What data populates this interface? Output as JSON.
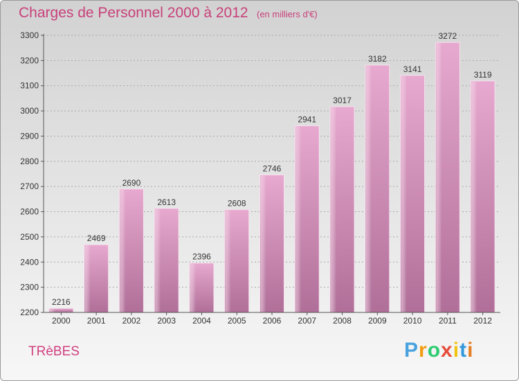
{
  "chart_data": {
    "type": "bar",
    "title": "Charges de Personnel 2000 à 2012",
    "subtitle": "(en milliers d'€)",
    "categories": [
      "2000",
      "2001",
      "2002",
      "2003",
      "2004",
      "2005",
      "2006",
      "2007",
      "2008",
      "2009",
      "2010",
      "2011",
      "2012"
    ],
    "values": [
      2216,
      2469,
      2690,
      2613,
      2396,
      2608,
      2746,
      2941,
      3017,
      3182,
      3141,
      3272,
      3119
    ],
    "ylim": [
      2200,
      3300
    ],
    "yticks": [
      2200,
      2300,
      2400,
      2500,
      2600,
      2700,
      2800,
      2900,
      3000,
      3100,
      3200,
      3300
    ],
    "grid": true,
    "bar_color": "#d68fba"
  },
  "footer": {
    "place": "TRèBES",
    "logo_letters": [
      "P",
      "r",
      "o",
      "x",
      "i",
      "t",
      "i"
    ],
    "logo_colors": [
      "#4aa3df",
      "#f39c12",
      "#2ecc71",
      "#e74c3c",
      "#f1c40f",
      "#3498db",
      "#e67e22"
    ]
  }
}
